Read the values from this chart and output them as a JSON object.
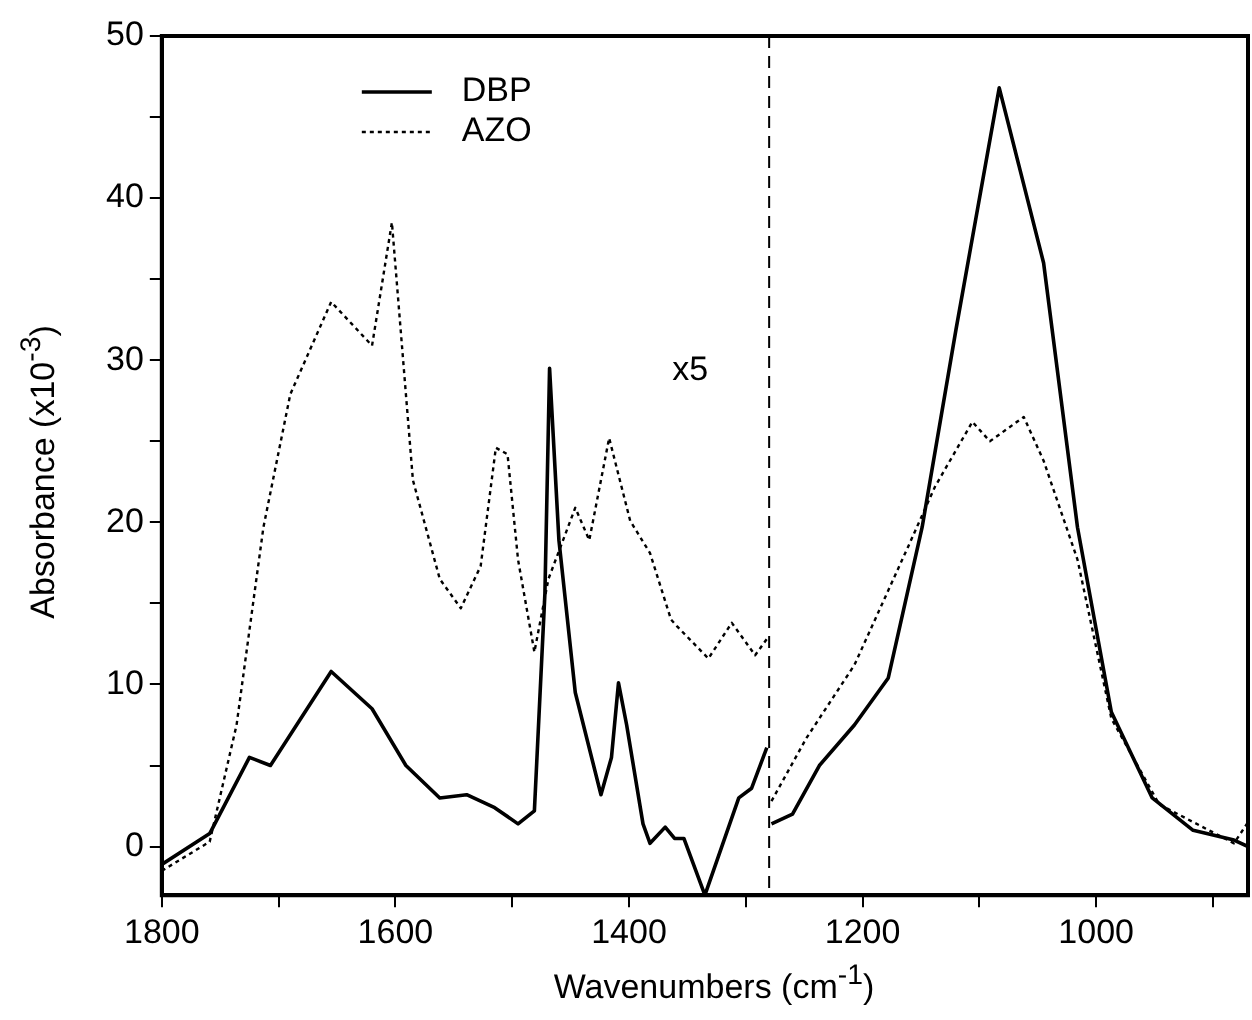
{
  "chart_data": {
    "type": "line",
    "xlabel": "Wavenumbers (cm$^{-1}$)",
    "ylabel": "Absorbance (x10$^{-3}$)",
    "xlim": [
      1800,
      870
    ],
    "ylim": [
      -3,
      50
    ],
    "xticks": [
      1800,
      {
        "value": 1700,
        "label": null
      },
      1600,
      {
        "value": 1500,
        "label": null
      },
      1400,
      {
        "value": 1300,
        "label": null
      },
      1200,
      {
        "value": 1100,
        "label": null
      },
      1000,
      {
        "value": 900,
        "label": null
      }
    ],
    "yticks": [
      0,
      {
        "value": 5,
        "label": null
      },
      10,
      {
        "value": 15,
        "label": null
      },
      20,
      {
        "value": 25,
        "label": null
      },
      30,
      {
        "value": 35,
        "label": null
      },
      40,
      {
        "value": 45,
        "label": null
      },
      50
    ],
    "grid": false,
    "legend": "top left",
    "marker": "none",
    "annotations": [
      "x5"
    ],
    "ref_lines": [
      {
        "axis": "x",
        "value": 1280,
        "color": "#000000",
        "line_style": "dashed"
      }
    ],
    "series": [
      {
        "name": "DBP",
        "color": "#000000",
        "line_style": "solid",
        "x": [
          1800,
          1759,
          1725,
          1707,
          1655,
          1620,
          1591,
          1562,
          1539,
          1515,
          1495,
          1481,
          1472,
          1468,
          1460,
          1446,
          1424,
          1415,
          1409,
          1402,
          1388,
          1382,
          1369,
          1361,
          1353,
          1335,
          1306,
          1295,
          1282,
          1280,
          1278,
          1260,
          1237,
          1207,
          1178,
          1149,
          1120,
          1083,
          1045,
          1016,
          987,
          952,
          917,
          882,
          870
        ],
        "values": [
          -1.1,
          0.8,
          5.5,
          5.0,
          10.8,
          8.5,
          5.0,
          3.0,
          3.2,
          2.4,
          1.4,
          2.2,
          15.6,
          29.5,
          18.9,
          9.5,
          3.2,
          5.5,
          10.1,
          7.5,
          1.4,
          0.2,
          1.2,
          0.5,
          0.5,
          -3.0,
          3.0,
          3.6,
          6.1,
          null,
          1.4,
          2.0,
          5.0,
          7.5,
          10.4,
          19.7,
          31.9,
          46.8,
          36,
          19.7,
          8.3,
          3.0,
          1.0,
          0.4,
          0.0
        ]
      },
      {
        "name": "AZO",
        "color": "#000000",
        "line_style": "dotted",
        "x": [
          1800,
          1759,
          1736,
          1713,
          1690,
          1655,
          1620,
          1603,
          1585,
          1562,
          1544,
          1527,
          1514,
          1504,
          1495,
          1481,
          1469,
          1446,
          1434,
          1417,
          1399,
          1382,
          1364,
          1359,
          1332,
          1312,
          1292,
          1282,
          1280,
          1278,
          1248,
          1207,
          1161,
          1138,
          1106,
          1091,
          1062,
          1045,
          1016,
          987,
          946,
          882,
          870
        ],
        "values": [
          -1.5,
          0.3,
          7.5,
          19.7,
          27.9,
          33.6,
          30.9,
          38.5,
          22.6,
          16.5,
          14.7,
          17.3,
          24.6,
          24.2,
          17.7,
          12.0,
          16.5,
          20.9,
          18.9,
          25.2,
          20.1,
          18.1,
          14.0,
          13.6,
          11.6,
          13.8,
          11.8,
          12.8,
          null,
          2.8,
          6.7,
          11.2,
          18.5,
          22.2,
          26.2,
          25.0,
          26.5,
          23.8,
          17.7,
          7.9,
          2.6,
          0.2,
          1.5
        ]
      }
    ]
  }
}
